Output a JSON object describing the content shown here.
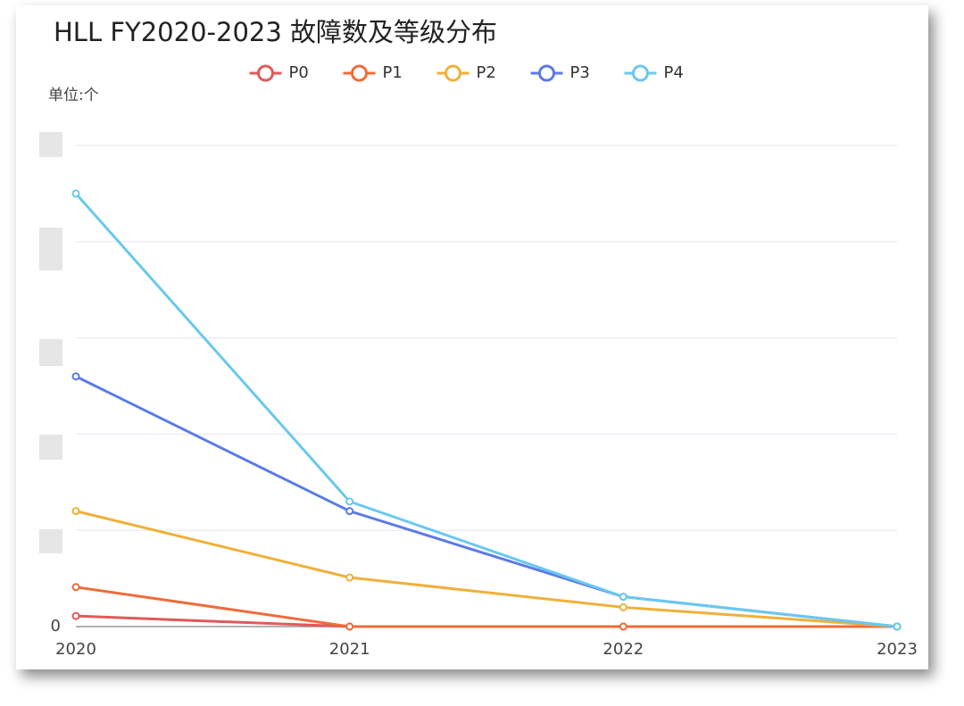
{
  "chart_data": {
    "type": "line",
    "title": "HLL FY2020-2023 故障数及等级分布",
    "y_unit_label": "单位:个",
    "categories": [
      "2020",
      "2021",
      "2022",
      "2023"
    ],
    "series": [
      {
        "name": "P0",
        "color": "#e05a5a",
        "values": [
          0.11,
          0,
          0,
          0
        ]
      },
      {
        "name": "P1",
        "color": "#ee6c3a",
        "values": [
          0.41,
          0,
          0,
          0
        ]
      },
      {
        "name": "P2",
        "color": "#f0b03a",
        "values": [
          1.2,
          0.51,
          0.2,
          0
        ]
      },
      {
        "name": "P3",
        "color": "#5b7be8",
        "values": [
          2.6,
          1.2,
          0.31,
          0
        ]
      },
      {
        "name": "P4",
        "color": "#6ac8ef",
        "values": [
          4.5,
          1.3,
          0.31,
          0
        ]
      }
    ],
    "ylim": [
      0,
      5
    ],
    "yticks": [
      0,
      {
        "value": 1,
        "label": null
      },
      {
        "value": 2,
        "label": null
      },
      {
        "value": 3,
        "label": null
      },
      {
        "value": 4,
        "label": null
      },
      {
        "value": 5,
        "label": null
      }
    ],
    "grid": true,
    "legend": "top"
  }
}
